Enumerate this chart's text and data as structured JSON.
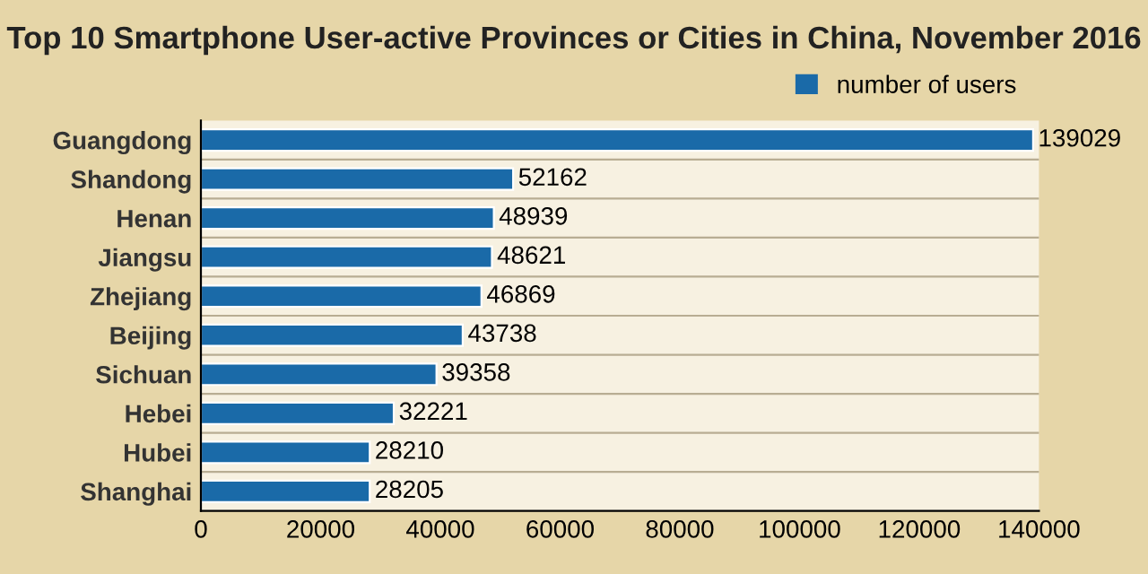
{
  "chart_data": {
    "type": "bar",
    "orientation": "horizontal",
    "title": "Top 10 Smartphone User-active Provinces or Cities in China, November 2016",
    "categories": [
      "Guangdong",
      "Shandong",
      "Henan",
      "Jiangsu",
      "Zhejiang",
      "Beijing",
      "Sichuan",
      "Hebei",
      "Hubei",
      "Shanghai"
    ],
    "series": [
      {
        "name": "number of users",
        "color": "#1a6aa8",
        "values": [
          139029,
          52162,
          48939,
          48621,
          46869,
          43738,
          39358,
          32221,
          28210,
          28205
        ]
      }
    ],
    "xlim": [
      0,
      140000
    ],
    "xticks": [
      0,
      20000,
      40000,
      60000,
      80000,
      100000,
      120000,
      140000
    ],
    "data_labels": true,
    "legend": "top right",
    "grid": false
  }
}
